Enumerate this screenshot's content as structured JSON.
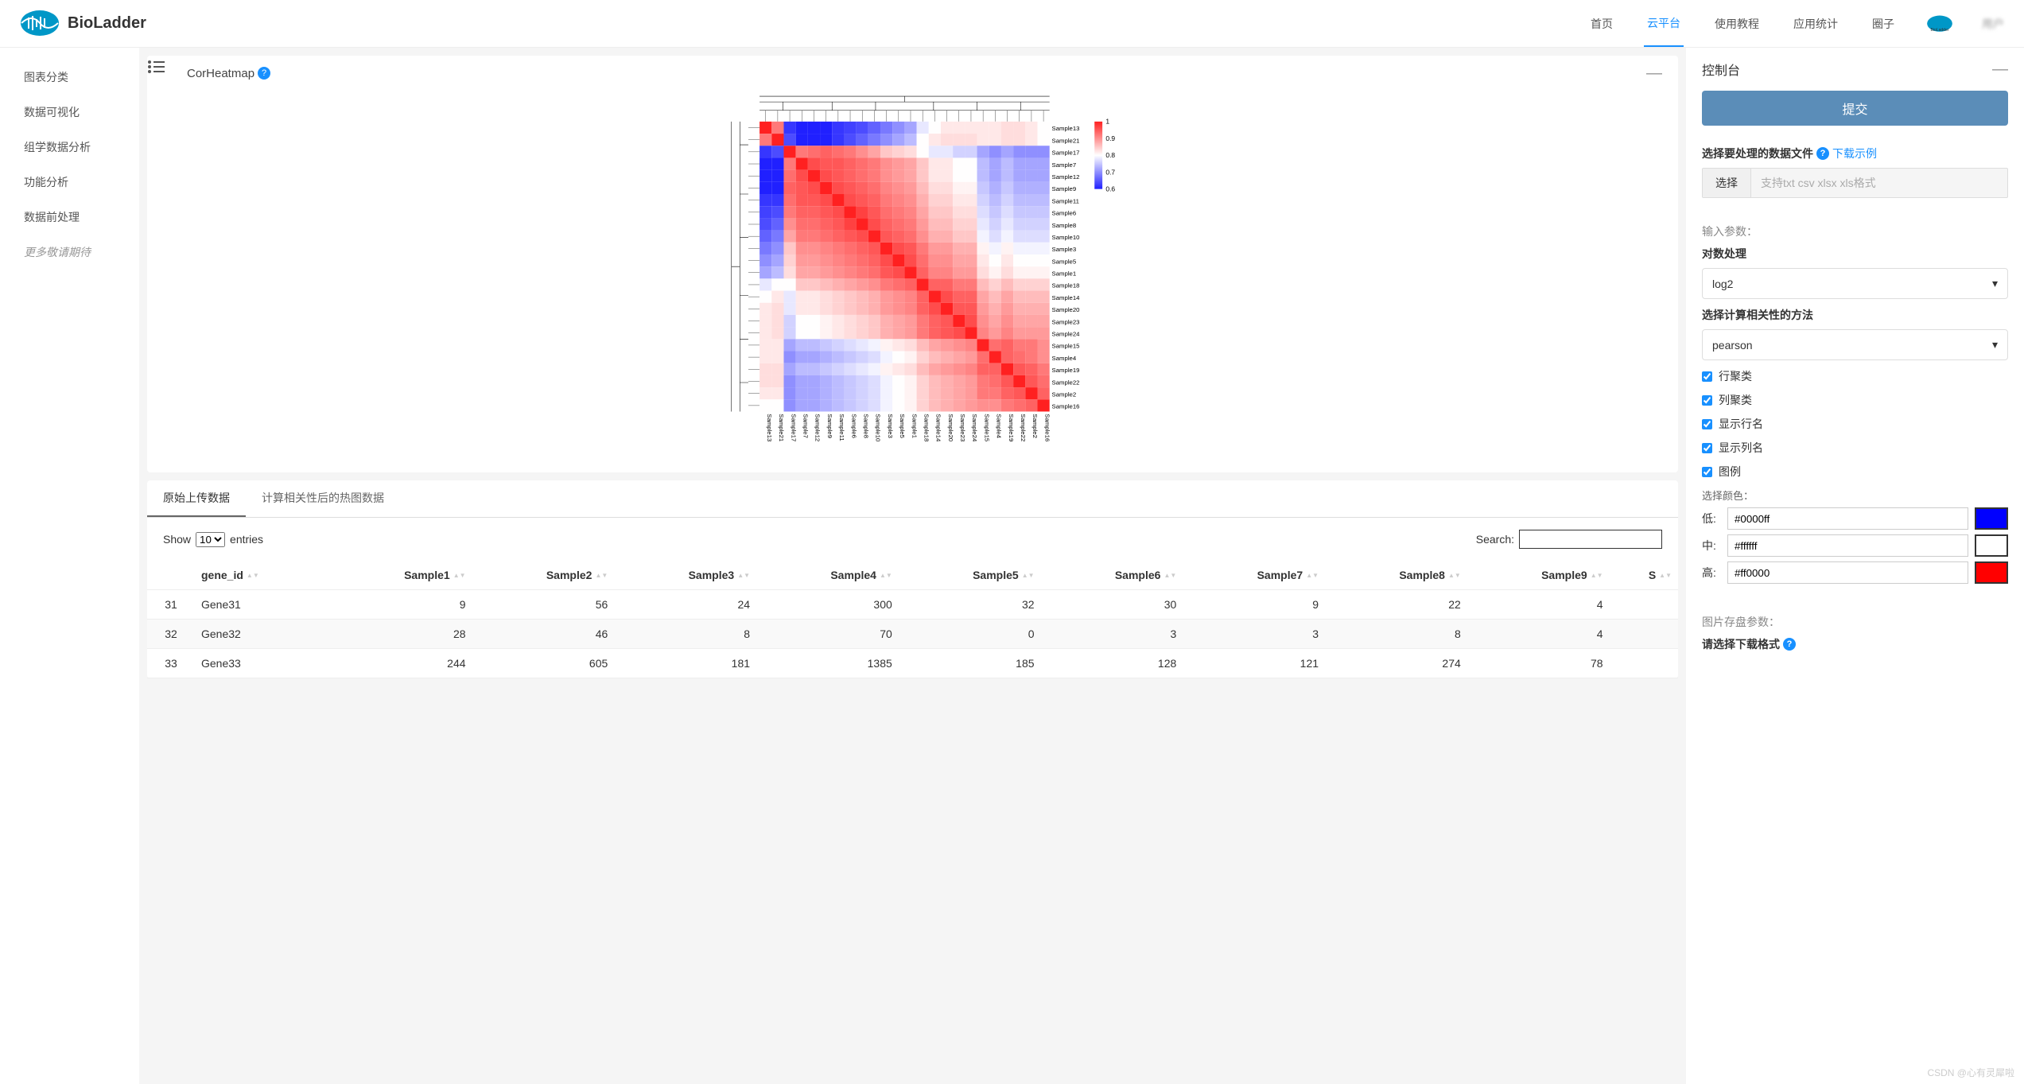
{
  "brand": {
    "name": "BioLadder"
  },
  "nav": {
    "items": [
      "首页",
      "云平台",
      "使用教程",
      "应用统计",
      "圈子"
    ],
    "active_index": 1,
    "user_name": "用户"
  },
  "sidebar": {
    "items": [
      "图表分类",
      "数据可视化",
      "组学数据分析",
      "功能分析",
      "数据前处理",
      "更多敬请期待"
    ]
  },
  "chart_panel": {
    "title": "CorHeatmap",
    "collapse": "—"
  },
  "heatmap": {
    "type": "heatmap",
    "background_color": "#ffffff",
    "cell_size": 21.5,
    "n": 24,
    "color_scale": {
      "min_color": "#2020ff",
      "mid_color": "#ffffff",
      "max_color": "#ff2020",
      "min_val": 0.6,
      "max_val": 1.0,
      "ticks": [
        "1",
        "0.9",
        "0.8",
        "0.7",
        "0.6"
      ]
    },
    "row_labels": [
      "Sample13",
      "Sample21",
      "Sample17",
      "Sample7",
      "Sample12",
      "Sample9",
      "Sample11",
      "Sample6",
      "Sample8",
      "Sample10",
      "Sample3",
      "Sample5",
      "Sample1",
      "Sample18",
      "Sample14",
      "Sample20",
      "Sample23",
      "Sample24",
      "Sample15",
      "Sample4",
      "Sample19",
      "Sample22",
      "Sample2",
      "Sample16"
    ],
    "col_labels": [
      "Sample13",
      "Sample21",
      "Sample17",
      "Sample7",
      "Sample12",
      "Sample9",
      "Sample11",
      "Sample6",
      "Sample8",
      "Sample10",
      "Sample3",
      "Sample5",
      "Sample1",
      "Sample18",
      "Sample14",
      "Sample20",
      "Sample23",
      "Sample24",
      "Sample15",
      "Sample4",
      "Sample19",
      "Sample22",
      "Sample2",
      "Sample16"
    ],
    "matrix": [
      [
        1.0,
        0.92,
        0.62,
        0.6,
        0.6,
        0.6,
        0.62,
        0.63,
        0.64,
        0.66,
        0.68,
        0.7,
        0.72,
        0.78,
        0.8,
        0.82,
        0.82,
        0.82,
        0.82,
        0.82,
        0.83,
        0.83,
        0.82,
        0.8
      ],
      [
        0.92,
        1.0,
        0.64,
        0.6,
        0.6,
        0.6,
        0.62,
        0.64,
        0.66,
        0.68,
        0.7,
        0.72,
        0.74,
        0.8,
        0.82,
        0.83,
        0.83,
        0.83,
        0.82,
        0.82,
        0.83,
        0.83,
        0.82,
        0.8
      ],
      [
        0.62,
        0.64,
        1.0,
        0.92,
        0.93,
        0.94,
        0.93,
        0.92,
        0.9,
        0.88,
        0.85,
        0.84,
        0.83,
        0.8,
        0.78,
        0.78,
        0.76,
        0.76,
        0.72,
        0.7,
        0.72,
        0.7,
        0.7,
        0.7
      ],
      [
        0.6,
        0.6,
        0.92,
        1.0,
        0.96,
        0.95,
        0.95,
        0.94,
        0.93,
        0.92,
        0.9,
        0.89,
        0.88,
        0.85,
        0.82,
        0.82,
        0.8,
        0.8,
        0.74,
        0.72,
        0.74,
        0.72,
        0.72,
        0.72
      ],
      [
        0.6,
        0.6,
        0.93,
        0.96,
        1.0,
        0.96,
        0.95,
        0.94,
        0.93,
        0.92,
        0.9,
        0.89,
        0.88,
        0.85,
        0.82,
        0.82,
        0.8,
        0.8,
        0.74,
        0.72,
        0.74,
        0.72,
        0.72,
        0.72
      ],
      [
        0.6,
        0.6,
        0.94,
        0.95,
        0.96,
        1.0,
        0.96,
        0.95,
        0.94,
        0.93,
        0.91,
        0.9,
        0.89,
        0.86,
        0.83,
        0.83,
        0.81,
        0.81,
        0.75,
        0.73,
        0.75,
        0.73,
        0.73,
        0.73
      ],
      [
        0.62,
        0.62,
        0.93,
        0.95,
        0.95,
        0.96,
        1.0,
        0.96,
        0.95,
        0.94,
        0.92,
        0.91,
        0.9,
        0.87,
        0.84,
        0.84,
        0.82,
        0.82,
        0.76,
        0.74,
        0.76,
        0.74,
        0.74,
        0.74
      ],
      [
        0.63,
        0.64,
        0.92,
        0.94,
        0.94,
        0.95,
        0.96,
        1.0,
        0.97,
        0.95,
        0.93,
        0.92,
        0.91,
        0.88,
        0.85,
        0.85,
        0.83,
        0.83,
        0.77,
        0.75,
        0.77,
        0.75,
        0.75,
        0.75
      ],
      [
        0.64,
        0.66,
        0.9,
        0.93,
        0.93,
        0.94,
        0.95,
        0.97,
        1.0,
        0.96,
        0.94,
        0.93,
        0.92,
        0.89,
        0.86,
        0.86,
        0.84,
        0.84,
        0.78,
        0.76,
        0.78,
        0.76,
        0.76,
        0.76
      ],
      [
        0.66,
        0.68,
        0.88,
        0.92,
        0.92,
        0.93,
        0.94,
        0.95,
        0.96,
        1.0,
        0.95,
        0.94,
        0.93,
        0.9,
        0.87,
        0.87,
        0.85,
        0.85,
        0.79,
        0.77,
        0.79,
        0.77,
        0.77,
        0.77
      ],
      [
        0.68,
        0.7,
        0.85,
        0.9,
        0.9,
        0.91,
        0.92,
        0.93,
        0.94,
        0.95,
        1.0,
        0.96,
        0.95,
        0.92,
        0.89,
        0.89,
        0.87,
        0.87,
        0.81,
        0.79,
        0.81,
        0.79,
        0.79,
        0.79
      ],
      [
        0.7,
        0.72,
        0.84,
        0.89,
        0.89,
        0.9,
        0.91,
        0.92,
        0.93,
        0.94,
        0.96,
        1.0,
        0.96,
        0.93,
        0.9,
        0.9,
        0.88,
        0.88,
        0.82,
        0.8,
        0.82,
        0.8,
        0.8,
        0.8
      ],
      [
        0.72,
        0.74,
        0.83,
        0.88,
        0.88,
        0.89,
        0.9,
        0.91,
        0.92,
        0.93,
        0.95,
        0.96,
        1.0,
        0.94,
        0.91,
        0.91,
        0.89,
        0.89,
        0.83,
        0.81,
        0.83,
        0.81,
        0.81,
        0.81
      ],
      [
        0.78,
        0.8,
        0.8,
        0.85,
        0.85,
        0.86,
        0.87,
        0.88,
        0.89,
        0.9,
        0.92,
        0.93,
        0.94,
        1.0,
        0.94,
        0.94,
        0.92,
        0.92,
        0.86,
        0.84,
        0.86,
        0.84,
        0.84,
        0.84
      ],
      [
        0.8,
        0.82,
        0.78,
        0.82,
        0.82,
        0.83,
        0.84,
        0.85,
        0.86,
        0.87,
        0.89,
        0.9,
        0.91,
        0.94,
        1.0,
        0.96,
        0.94,
        0.94,
        0.88,
        0.86,
        0.88,
        0.86,
        0.86,
        0.86
      ],
      [
        0.82,
        0.83,
        0.78,
        0.82,
        0.82,
        0.83,
        0.84,
        0.85,
        0.86,
        0.87,
        0.89,
        0.9,
        0.91,
        0.94,
        0.96,
        1.0,
        0.95,
        0.95,
        0.89,
        0.87,
        0.89,
        0.87,
        0.87,
        0.87
      ],
      [
        0.82,
        0.83,
        0.76,
        0.8,
        0.8,
        0.81,
        0.82,
        0.83,
        0.84,
        0.85,
        0.87,
        0.88,
        0.89,
        0.92,
        0.94,
        0.95,
        1.0,
        0.96,
        0.9,
        0.88,
        0.9,
        0.88,
        0.88,
        0.88
      ],
      [
        0.82,
        0.83,
        0.76,
        0.8,
        0.8,
        0.81,
        0.82,
        0.83,
        0.84,
        0.85,
        0.87,
        0.88,
        0.89,
        0.92,
        0.94,
        0.95,
        0.96,
        1.0,
        0.91,
        0.89,
        0.91,
        0.89,
        0.89,
        0.89
      ],
      [
        0.82,
        0.82,
        0.72,
        0.74,
        0.74,
        0.75,
        0.76,
        0.77,
        0.78,
        0.79,
        0.81,
        0.82,
        0.83,
        0.86,
        0.88,
        0.89,
        0.9,
        0.91,
        1.0,
        0.93,
        0.94,
        0.92,
        0.92,
        0.9
      ],
      [
        0.82,
        0.82,
        0.7,
        0.72,
        0.72,
        0.73,
        0.74,
        0.75,
        0.76,
        0.77,
        0.79,
        0.8,
        0.81,
        0.84,
        0.86,
        0.87,
        0.88,
        0.89,
        0.93,
        1.0,
        0.94,
        0.93,
        0.92,
        0.9
      ],
      [
        0.83,
        0.83,
        0.72,
        0.74,
        0.74,
        0.75,
        0.76,
        0.77,
        0.78,
        0.79,
        0.81,
        0.82,
        0.83,
        0.86,
        0.88,
        0.89,
        0.9,
        0.91,
        0.94,
        0.94,
        1.0,
        0.95,
        0.94,
        0.92
      ],
      [
        0.83,
        0.83,
        0.7,
        0.72,
        0.72,
        0.73,
        0.74,
        0.75,
        0.76,
        0.77,
        0.79,
        0.8,
        0.81,
        0.84,
        0.86,
        0.87,
        0.88,
        0.89,
        0.92,
        0.93,
        0.95,
        1.0,
        0.95,
        0.93
      ],
      [
        0.82,
        0.82,
        0.7,
        0.72,
        0.72,
        0.73,
        0.74,
        0.75,
        0.76,
        0.77,
        0.79,
        0.8,
        0.81,
        0.84,
        0.86,
        0.87,
        0.88,
        0.89,
        0.92,
        0.92,
        0.94,
        0.95,
        1.0,
        0.94
      ],
      [
        0.8,
        0.8,
        0.7,
        0.72,
        0.72,
        0.73,
        0.74,
        0.75,
        0.76,
        0.77,
        0.79,
        0.8,
        0.81,
        0.84,
        0.86,
        0.87,
        0.88,
        0.89,
        0.9,
        0.9,
        0.92,
        0.93,
        0.94,
        1.0
      ]
    ]
  },
  "data_tabs": {
    "tabs": [
      "原始上传数据",
      "计算相关性后的热图数据"
    ],
    "active": 0,
    "show_label": "Show",
    "entries_label": "entries",
    "page_size": "10",
    "search_label": "Search:",
    "columns": [
      "",
      "gene_id",
      "Sample1",
      "Sample2",
      "Sample3",
      "Sample4",
      "Sample5",
      "Sample6",
      "Sample7",
      "Sample8",
      "Sample9",
      "S"
    ],
    "rows": [
      [
        "31",
        "Gene31",
        "9",
        "56",
        "24",
        "300",
        "32",
        "30",
        "9",
        "22",
        "4"
      ],
      [
        "32",
        "Gene32",
        "28",
        "46",
        "8",
        "70",
        "0",
        "3",
        "3",
        "8",
        "4"
      ],
      [
        "33",
        "Gene33",
        "244",
        "605",
        "181",
        "1385",
        "185",
        "128",
        "121",
        "274",
        "78"
      ]
    ]
  },
  "controls": {
    "title": "控制台",
    "submit": "提交",
    "file_label": "选择要处理的数据文件",
    "download_example": "下载示例",
    "file_btn": "选择",
    "file_placeholder": "支持txt csv xlsx xls格式",
    "input_params": "输入参数：",
    "log_label": "对数处理",
    "log_value": "log2",
    "method_label": "选择计算相关性的方法",
    "method_value": "pearson",
    "checkboxes": [
      "行聚类",
      "列聚类",
      "显示行名",
      "显示列名",
      "图例"
    ],
    "color_label": "选择颜色：",
    "colors": {
      "low": {
        "label": "低:",
        "value": "#0000ff",
        "swatch": "#0000ff"
      },
      "mid": {
        "label": "中:",
        "value": "#ffffff",
        "swatch": "#ffffff"
      },
      "high": {
        "label": "高:",
        "value": "#ff0000",
        "swatch": "#ff0000"
      }
    },
    "save_params": "图片存盘参数：",
    "download_format": "请选择下载格式"
  },
  "watermark": "CSDN @心有灵犀啦"
}
